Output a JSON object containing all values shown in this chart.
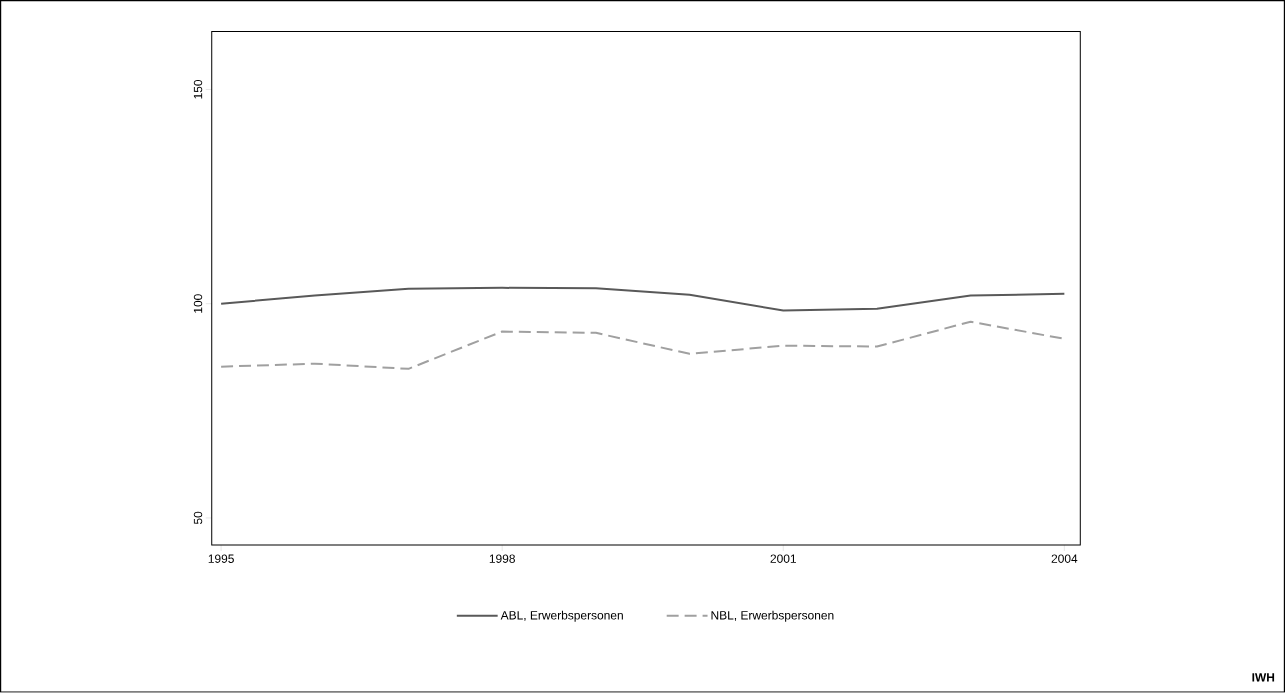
{
  "chart_data": {
    "type": "line",
    "x": [
      1995,
      1996,
      1997,
      1998,
      1999,
      2000,
      2001,
      2002,
      2003,
      2004
    ],
    "series": [
      {
        "name": "ABL, Erwerbspersonen",
        "color": "#595959",
        "line_style": "solid",
        "values": [
          100,
          101.9,
          103.5,
          103.7,
          103.6,
          102.1,
          98.4,
          98.8,
          101.9,
          102.3
        ]
      },
      {
        "name": "NBL, Erwerbspersonen",
        "color": "#a0a0a0",
        "line_style": "dashed",
        "values": [
          85.3,
          86.0,
          84.8,
          93.5,
          93.2,
          88.3,
          90.2,
          90.0,
          95.8,
          91.8
        ]
      }
    ],
    "xlim": [
      1994.9,
      2004.17
    ],
    "ylim": [
      43.7,
      163.5
    ],
    "xticks": [
      1995,
      1998,
      2001,
      2004
    ],
    "yticks": [
      50,
      100,
      150
    ],
    "grid": false,
    "legend": "bottom",
    "marker": "none",
    "annotations": [
      "IWH"
    ]
  }
}
